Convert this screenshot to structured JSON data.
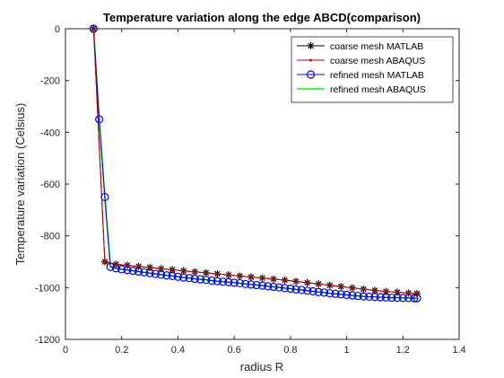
{
  "chart_data": {
    "type": "line",
    "title": "Temperature variation along the edge ABCD(comparison)",
    "xlabel": "radius R",
    "ylabel": "Temperature variation (Celsius)",
    "xlim": [
      0,
      1.4
    ],
    "ylim": [
      -1200,
      0
    ],
    "xticks": [
      "0",
      "0.2",
      "0.4",
      "0.6",
      "0.8",
      "1",
      "1.2",
      "1.4"
    ],
    "yticks": [
      "0",
      "-200",
      "-400",
      "-600",
      "-800",
      "-1000",
      "-1200"
    ],
    "grid": false,
    "legend_position": "top-right",
    "series": [
      {
        "name": "coarse mesh MATLAB",
        "color": "#000000",
        "marker": "asterisk",
        "x": [
          0.1,
          0.14,
          0.18,
          0.22,
          0.26,
          0.3,
          0.34,
          0.38,
          0.42,
          0.46,
          0.5,
          0.54,
          0.58,
          0.62,
          0.66,
          0.7,
          0.74,
          0.78,
          0.82,
          0.86,
          0.9,
          0.94,
          0.98,
          1.02,
          1.06,
          1.1,
          1.14,
          1.18,
          1.22,
          1.25
        ],
        "y": [
          0,
          -900,
          -910,
          -914,
          -918,
          -922,
          -927,
          -931,
          -935,
          -939,
          -943,
          -947,
          -951,
          -955,
          -959,
          -963,
          -967,
          -971,
          -976,
          -981,
          -986,
          -991,
          -996,
          -1001,
          -1006,
          -1011,
          -1015,
          -1018,
          -1021,
          -1023
        ]
      },
      {
        "name": "coarse mesh ABAQUS",
        "color": "#c00000",
        "marker": "dot",
        "x": [
          0.1,
          0.14,
          0.18,
          0.22,
          0.26,
          0.3,
          0.34,
          0.38,
          0.42,
          0.46,
          0.5,
          0.54,
          0.58,
          0.62,
          0.66,
          0.7,
          0.74,
          0.78,
          0.82,
          0.86,
          0.9,
          0.94,
          0.98,
          1.02,
          1.06,
          1.1,
          1.14,
          1.18,
          1.22,
          1.25
        ],
        "y": [
          0,
          -900,
          -910,
          -914,
          -918,
          -922,
          -927,
          -931,
          -935,
          -939,
          -943,
          -947,
          -951,
          -955,
          -959,
          -963,
          -967,
          -971,
          -976,
          -981,
          -986,
          -991,
          -996,
          -1001,
          -1006,
          -1011,
          -1015,
          -1018,
          -1021,
          -1023
        ]
      },
      {
        "name": "refined mesh MATLAB",
        "color": "#0000ff",
        "marker": "circle",
        "x": [
          0.1,
          0.12,
          0.14,
          0.16,
          0.18,
          0.2,
          0.22,
          0.24,
          0.26,
          0.28,
          0.3,
          0.32,
          0.34,
          0.36,
          0.38,
          0.4,
          0.42,
          0.44,
          0.46,
          0.48,
          0.5,
          0.52,
          0.54,
          0.56,
          0.58,
          0.6,
          0.62,
          0.64,
          0.66,
          0.68,
          0.7,
          0.72,
          0.74,
          0.76,
          0.78,
          0.8,
          0.82,
          0.84,
          0.86,
          0.88,
          0.9,
          0.92,
          0.94,
          0.96,
          0.98,
          1.0,
          1.02,
          1.04,
          1.06,
          1.08,
          1.1,
          1.12,
          1.14,
          1.16,
          1.18,
          1.2,
          1.22,
          1.24,
          1.25
        ],
        "y": [
          0,
          -350,
          -650,
          -920,
          -925,
          -929,
          -932,
          -935,
          -938,
          -941,
          -944,
          -947,
          -950,
          -953,
          -955,
          -958,
          -961,
          -963,
          -966,
          -968,
          -970,
          -973,
          -975,
          -977,
          -979,
          -981,
          -983,
          -986,
          -988,
          -990,
          -992,
          -995,
          -997,
          -999,
          -1002,
          -1004,
          -1007,
          -1009,
          -1012,
          -1014,
          -1017,
          -1019,
          -1022,
          -1024,
          -1026,
          -1028,
          -1030,
          -1032,
          -1034,
          -1035,
          -1036,
          -1037,
          -1038,
          -1039,
          -1039,
          -1040,
          -1040,
          -1041,
          -1041
        ]
      },
      {
        "name": "refined mesh ABAQUS",
        "color": "#00ff00",
        "marker": "none",
        "x": [
          0.1,
          0.12,
          0.14,
          0.16,
          0.18,
          0.2,
          0.22,
          0.24,
          0.26,
          0.28,
          0.3,
          0.32,
          0.34,
          0.36,
          0.38,
          0.4,
          0.42,
          0.44,
          0.46,
          0.48,
          0.5,
          0.52,
          0.54,
          0.56,
          0.58,
          0.6,
          0.62,
          0.64,
          0.66,
          0.68,
          0.7,
          0.72,
          0.74,
          0.76,
          0.78,
          0.8,
          0.82,
          0.84,
          0.86,
          0.88,
          0.9,
          0.92,
          0.94,
          0.96,
          0.98,
          1.0,
          1.02,
          1.04,
          1.06,
          1.08,
          1.1,
          1.12,
          1.14,
          1.16,
          1.18,
          1.2,
          1.22,
          1.24,
          1.25
        ],
        "y": [
          0,
          -350,
          -650,
          -920,
          -925,
          -929,
          -932,
          -935,
          -938,
          -941,
          -944,
          -947,
          -950,
          -953,
          -955,
          -958,
          -961,
          -963,
          -966,
          -968,
          -970,
          -973,
          -975,
          -977,
          -979,
          -981,
          -983,
          -986,
          -988,
          -990,
          -992,
          -995,
          -997,
          -999,
          -1002,
          -1004,
          -1007,
          -1009,
          -1012,
          -1014,
          -1017,
          -1019,
          -1022,
          -1024,
          -1026,
          -1028,
          -1030,
          -1032,
          -1034,
          -1035,
          -1036,
          -1037,
          -1038,
          -1039,
          -1039,
          -1040,
          -1040,
          -1041,
          -1041
        ]
      }
    ]
  }
}
